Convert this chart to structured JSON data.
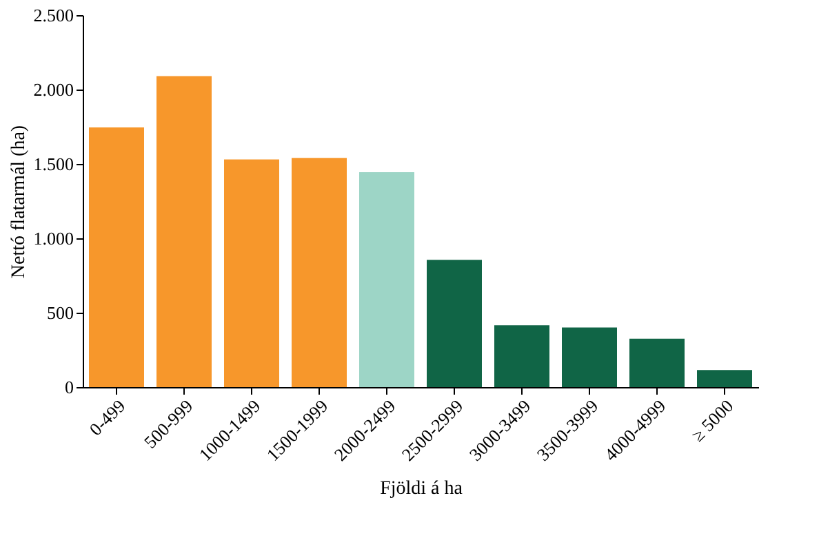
{
  "chart_data": {
    "type": "bar",
    "xlabel": "Fjöldi á ha",
    "ylabel": "Nettó flatarmál (ha)",
    "categories": [
      "0-499",
      "500-999",
      "1000-1499",
      "1500-1999",
      "2000-2499",
      "2500-2999",
      "3000-3499",
      "3500-3999",
      "4000-4999",
      "≥ 5000"
    ],
    "values": [
      1745,
      2090,
      1530,
      1540,
      1445,
      855,
      415,
      400,
      325,
      115
    ],
    "colors": [
      "#f7972b",
      "#f7972b",
      "#f7972b",
      "#f7972b",
      "#9dd5c6",
      "#106546",
      "#106546",
      "#106546",
      "#106546",
      "#106546"
    ],
    "ylim": [
      0,
      2500
    ],
    "yticks": [
      {
        "value": 0,
        "label": "0"
      },
      {
        "value": 500,
        "label": "500"
      },
      {
        "value": 1000,
        "label": "1.000"
      },
      {
        "value": 1500,
        "label": "1.500"
      },
      {
        "value": 2000,
        "label": "2.000"
      },
      {
        "value": 2500,
        "label": "2.500"
      }
    ],
    "grid": false
  }
}
